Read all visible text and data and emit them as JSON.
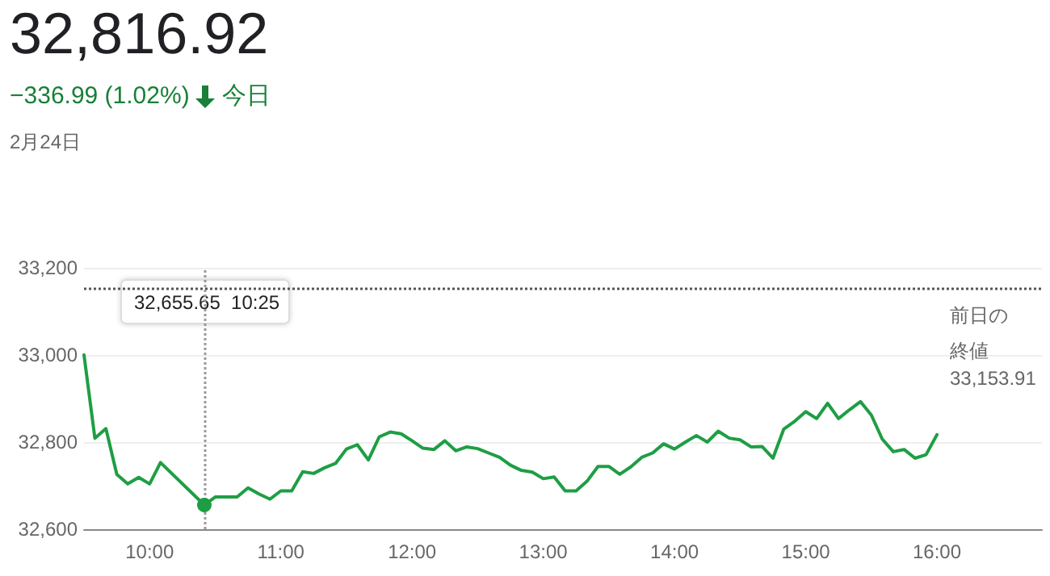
{
  "chart_data": {
    "type": "line",
    "title": "32,816.92",
    "subtitle": "−336.99 (1.02%)",
    "annotations": [
      "今日",
      "2月24日",
      "32,655.65  10:25",
      "33,153.91"
    ],
    "series": [
      {
        "color": "#1e9e44",
        "x": [
          9.5,
          9.583,
          9.667,
          9.75,
          9.833,
          9.917,
          10,
          10.083,
          10.417,
          10.5,
          10.667,
          10.75,
          10.833,
          10.917,
          11,
          11.083,
          11.167,
          11.25,
          11.333,
          11.417,
          11.5,
          11.583,
          11.667,
          11.75,
          11.833,
          11.917,
          12,
          12.083,
          12.167,
          12.25,
          12.333,
          12.417,
          12.5,
          12.583,
          12.667,
          12.75,
          12.833,
          12.917,
          13,
          13.083,
          13.167,
          13.25,
          13.333,
          13.417,
          13.5,
          13.583,
          13.667,
          13.75,
          13.833,
          13.917,
          14,
          14.083,
          14.167,
          14.25,
          14.333,
          14.417,
          14.5,
          14.583,
          14.667,
          14.75,
          14.833,
          14.917,
          15,
          15.083,
          15.167,
          15.25,
          15.333,
          15.417,
          15.5,
          15.583,
          15.667,
          15.75,
          15.833,
          15.917,
          16
        ],
        "values": [
          33000,
          32809,
          32831,
          32726,
          32704,
          32719,
          32704,
          32753,
          32655.65,
          32674,
          32674,
          32695,
          32681,
          32669,
          32688,
          32688,
          32732,
          32728,
          32741,
          32751,
          32784,
          32794,
          32759,
          32812,
          32823,
          32819,
          32803,
          32786,
          32783,
          32803,
          32780,
          32789,
          32785,
          32775,
          32765,
          32747,
          32735,
          32731,
          32716,
          32720,
          32688,
          32688,
          32710,
          32744,
          32744,
          32726,
          32743,
          32765,
          32775,
          32796,
          32784,
          32800,
          32815,
          32800,
          32825,
          32809,
          32805,
          32789,
          32790,
          32763,
          32830,
          32848,
          32870,
          32854,
          32889,
          32854,
          32874,
          32893,
          32862,
          32807,
          32778,
          32783,
          32763,
          32771,
          32816.92
        ]
      }
    ],
    "xlim": [
      9.5,
      16.8
    ],
    "xticks": [
      {
        "value": 10,
        "label": "10:00"
      },
      {
        "value": 11,
        "label": "11:00"
      },
      {
        "value": 12,
        "label": "12:00"
      },
      {
        "value": 13,
        "label": "13:00"
      },
      {
        "value": 14,
        "label": "14:00"
      },
      {
        "value": 15,
        "label": "15:00"
      },
      {
        "value": 16,
        "label": "16:00"
      }
    ],
    "ylim": [
      32600,
      33200
    ],
    "yticks": [
      {
        "value": 32600,
        "label": "32,600"
      },
      {
        "value": 32800,
        "label": "32,800"
      },
      {
        "value": 33000,
        "label": "33,000"
      },
      {
        "value": 33200,
        "label": "33,200"
      }
    ],
    "ref_lines": [
      {
        "axis": "y",
        "value": 33153.91,
        "label": "前日の終値",
        "line_style": "dotted",
        "color": "#555555"
      },
      {
        "axis": "x",
        "value": 10.417,
        "line_style": "dotted",
        "color": "#999999"
      }
    ],
    "grid": "y",
    "marker": "none",
    "line_style": "solid"
  }
}
